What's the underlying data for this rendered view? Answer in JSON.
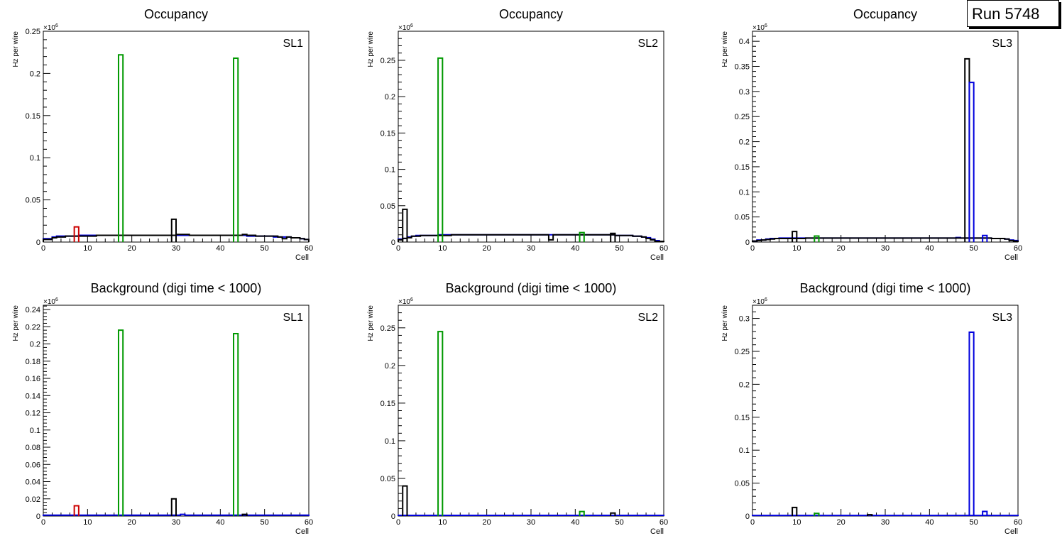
{
  "run_label": "Run 5748",
  "colors": {
    "black": "#000000",
    "red": "#cc0000",
    "green": "#009900",
    "blue": "#0000dd"
  },
  "chart_data": [
    {
      "type": "bar",
      "title": "Occupancy",
      "tag": "SL1",
      "xlabel": "Cell",
      "ylabel": "Hz per wire",
      "exponent_label": "×10",
      "exponent": "6",
      "xlim": [
        0,
        60
      ],
      "ylim": [
        0,
        0.25
      ],
      "xticks": [
        "0",
        "10",
        "20",
        "30",
        "40",
        "50",
        "60"
      ],
      "yticks": [
        "0",
        "0.05",
        "0.1",
        "0.15",
        "0.2",
        "0.25"
      ],
      "ytick_values": [
        0,
        0.05,
        0.1,
        0.15,
        0.2,
        0.25
      ],
      "baselines": [
        {
          "color": "#0000dd",
          "values": [
            0.004,
            0.004,
            0.006,
            0.007,
            0.007,
            0.007,
            0.007,
            0.007,
            0.008,
            0.008,
            0.008,
            0.008,
            0.008,
            0.008,
            0.008,
            0.008,
            0.008,
            0.008,
            0.008,
            0.008,
            0.008,
            0.008,
            0.008,
            0.008,
            0.008,
            0.008,
            0.008,
            0.008,
            0.008,
            0.008,
            0.008,
            0.008,
            0.008,
            0.008,
            0.008,
            0.008,
            0.008,
            0.008,
            0.008,
            0.008,
            0.008,
            0.008,
            0.008,
            0.008,
            0.008,
            0.008,
            0.007,
            0.007,
            0.007,
            0.007,
            0.007,
            0.007,
            0.006,
            0.006,
            0.006,
            0.006,
            0.005,
            0.005,
            0.004,
            0.003
          ]
        },
        {
          "color": "#000000",
          "values": [
            0.003,
            0.003,
            0.005,
            0.006,
            0.006,
            0.007,
            0.007,
            0.007,
            0.007,
            0.007,
            0.007,
            0.007,
            0.008,
            0.008,
            0.008,
            0.008,
            0.008,
            0.008,
            0.008,
            0.008,
            0.008,
            0.008,
            0.008,
            0.008,
            0.008,
            0.008,
            0.008,
            0.008,
            0.008,
            0.008,
            0.009,
            0.009,
            0.009,
            0.008,
            0.008,
            0.008,
            0.008,
            0.008,
            0.008,
            0.008,
            0.008,
            0.008,
            0.008,
            0.008,
            0.008,
            0.009,
            0.008,
            0.008,
            0.007,
            0.007,
            0.007,
            0.007,
            0.007,
            0.006,
            0.004,
            0.006,
            0.005,
            0.005,
            0.004,
            0.003
          ]
        }
      ],
      "spikes": [
        {
          "color": "#cc0000",
          "bin": 7,
          "value": 0.018
        },
        {
          "color": "#009900",
          "bin": 17,
          "value": 0.222
        },
        {
          "color": "#000000",
          "bin": 29,
          "value": 0.027
        },
        {
          "color": "#009900",
          "bin": 43,
          "value": 0.218
        }
      ]
    },
    {
      "type": "bar",
      "title": "Occupancy",
      "tag": "SL2",
      "xlabel": "Cell",
      "ylabel": "Hz per wire",
      "exponent_label": "×10",
      "exponent": "6",
      "xlim": [
        0,
        60
      ],
      "ylim": [
        0,
        0.29
      ],
      "xticks": [
        "0",
        "10",
        "20",
        "30",
        "40",
        "50",
        "60"
      ],
      "yticks": [
        "0",
        "0.05",
        "0.1",
        "0.15",
        "0.2",
        "0.25"
      ],
      "ytick_values": [
        0,
        0.05,
        0.1,
        0.15,
        0.2,
        0.25
      ],
      "baselines": [
        {
          "color": "#0000dd",
          "values": [
            0.004,
            0.005,
            0.007,
            0.008,
            0.009,
            0.009,
            0.009,
            0.009,
            0.009,
            0.01,
            0.01,
            0.01,
            0.01,
            0.01,
            0.01,
            0.01,
            0.01,
            0.01,
            0.01,
            0.01,
            0.01,
            0.01,
            0.01,
            0.01,
            0.01,
            0.01,
            0.01,
            0.01,
            0.01,
            0.01,
            0.01,
            0.01,
            0.01,
            0.01,
            0.01,
            0.01,
            0.01,
            0.01,
            0.01,
            0.01,
            0.01,
            0.01,
            0.01,
            0.01,
            0.01,
            0.01,
            0.01,
            0.01,
            0.01,
            0.009,
            0.009,
            0.009,
            0.009,
            0.008,
            0.008,
            0.007,
            0.006,
            0.004,
            0.002,
            0.001
          ]
        },
        {
          "color": "#000000",
          "values": [
            0.003,
            0.005,
            0.006,
            0.008,
            0.008,
            0.009,
            0.009,
            0.009,
            0.009,
            0.009,
            0.009,
            0.009,
            0.01,
            0.01,
            0.01,
            0.01,
            0.01,
            0.01,
            0.01,
            0.01,
            0.01,
            0.01,
            0.01,
            0.01,
            0.01,
            0.01,
            0.01,
            0.01,
            0.01,
            0.01,
            0.01,
            0.01,
            0.01,
            0.01,
            0.003,
            0.01,
            0.01,
            0.01,
            0.01,
            0.01,
            0.01,
            0.01,
            0.01,
            0.01,
            0.01,
            0.01,
            0.01,
            0.01,
            0.01,
            0.009,
            0.009,
            0.009,
            0.009,
            0.008,
            0.008,
            0.007,
            0.005,
            0.003,
            0.001,
            0.001
          ]
        }
      ],
      "spikes": [
        {
          "color": "#000000",
          "bin": 1,
          "value": 0.045
        },
        {
          "color": "#009900",
          "bin": 9,
          "value": 0.253
        },
        {
          "color": "#009900",
          "bin": 41,
          "value": 0.013
        },
        {
          "color": "#000000",
          "bin": 48,
          "value": 0.012
        }
      ]
    },
    {
      "type": "bar",
      "title": "Occupancy",
      "tag": "SL3",
      "xlabel": "Cell",
      "ylabel": "Hz per wire",
      "exponent_label": "×10",
      "exponent": "6",
      "xlim": [
        0,
        60
      ],
      "ylim": [
        0,
        0.42
      ],
      "xticks": [
        "0",
        "10",
        "20",
        "30",
        "40",
        "50",
        "60"
      ],
      "yticks": [
        "0",
        "0.05",
        "0.1",
        "0.15",
        "0.2",
        "0.25",
        "0.3",
        "0.35",
        "0.4"
      ],
      "ytick_values": [
        0,
        0.05,
        0.1,
        0.15,
        0.2,
        0.25,
        0.3,
        0.35,
        0.4
      ],
      "baselines": [
        {
          "color": "#0000dd",
          "values": [
            0.002,
            0.004,
            0.004,
            0.006,
            0.007,
            0.007,
            0.008,
            0.008,
            0.008,
            0.008,
            0.008,
            0.008,
            0.008,
            0.008,
            0.008,
            0.008,
            0.008,
            0.008,
            0.008,
            0.008,
            0.008,
            0.008,
            0.008,
            0.008,
            0.008,
            0.008,
            0.008,
            0.008,
            0.008,
            0.008,
            0.008,
            0.008,
            0.008,
            0.008,
            0.008,
            0.008,
            0.008,
            0.008,
            0.008,
            0.008,
            0.008,
            0.008,
            0.008,
            0.008,
            0.008,
            0.008,
            0.009,
            0.008,
            0.008,
            0.008,
            0.008,
            0.008,
            0.008,
            0.008,
            0.007,
            0.007,
            0.007,
            0.006,
            0.004,
            0.003
          ]
        },
        {
          "color": "#000000",
          "values": [
            0.002,
            0.003,
            0.004,
            0.005,
            0.006,
            0.007,
            0.007,
            0.007,
            0.007,
            0.007,
            0.007,
            0.007,
            0.008,
            0.008,
            0.008,
            0.008,
            0.008,
            0.008,
            0.008,
            0.008,
            0.008,
            0.008,
            0.008,
            0.008,
            0.008,
            0.008,
            0.008,
            0.008,
            0.008,
            0.008,
            0.008,
            0.008,
            0.008,
            0.008,
            0.008,
            0.008,
            0.008,
            0.008,
            0.008,
            0.008,
            0.008,
            0.008,
            0.008,
            0.008,
            0.008,
            0.008,
            0.008,
            0.008,
            0.008,
            0.008,
            0.008,
            0.008,
            0.008,
            0.008,
            0.007,
            0.007,
            0.007,
            0.006,
            0.003,
            0.002
          ]
        }
      ],
      "spikes": [
        {
          "color": "#000000",
          "bin": 9,
          "value": 0.021
        },
        {
          "color": "#009900",
          "bin": 14,
          "value": 0.012
        },
        {
          "color": "#000000",
          "bin": 48,
          "value": 0.365
        },
        {
          "color": "#0000dd",
          "bin": 49,
          "value": 0.318
        },
        {
          "color": "#0000dd",
          "bin": 52,
          "value": 0.013
        }
      ]
    },
    {
      "type": "bar",
      "title": "Background (digi time < 1000)",
      "tag": "SL1",
      "xlabel": "Cell",
      "ylabel": "Hz per wire",
      "exponent_label": "×10",
      "exponent": "6",
      "xlim": [
        0,
        60
      ],
      "ylim": [
        0,
        0.245
      ],
      "xticks": [
        "0",
        "10",
        "20",
        "30",
        "40",
        "50",
        "60"
      ],
      "yticks": [
        "0",
        "0.02",
        "0.04",
        "0.06",
        "0.08",
        "0.1",
        "0.12",
        "0.14",
        "0.16",
        "0.18",
        "0.2",
        "0.22",
        "0.24"
      ],
      "ytick_values": [
        0,
        0.02,
        0.04,
        0.06,
        0.08,
        0.1,
        0.12,
        0.14,
        0.16,
        0.18,
        0.2,
        0.22,
        0.24
      ],
      "baselines": [
        {
          "color": "#0000dd",
          "values": [
            0.001,
            0.001,
            0.001,
            0.001,
            0.001,
            0.001,
            0.001,
            0.001,
            0.001,
            0.001,
            0.001,
            0.001,
            0.001,
            0.001,
            0.001,
            0.001,
            0.001,
            0.001,
            0.001,
            0.001,
            0.001,
            0.001,
            0.001,
            0.001,
            0.001,
            0.001,
            0.001,
            0.001,
            0.001,
            0.001,
            0.001,
            0.002,
            0.001,
            0.001,
            0.001,
            0.001,
            0.001,
            0.001,
            0.001,
            0.001,
            0.001,
            0.001,
            0.001,
            0.001,
            0.001,
            0.001,
            0.001,
            0.001,
            0.001,
            0.001,
            0.001,
            0.001,
            0.001,
            0.001,
            0.001,
            0.001,
            0.001,
            0.001,
            0.001,
            0.001
          ]
        }
      ],
      "spikes": [
        {
          "color": "#cc0000",
          "bin": 7,
          "value": 0.012
        },
        {
          "color": "#009900",
          "bin": 17,
          "value": 0.216
        },
        {
          "color": "#000000",
          "bin": 29,
          "value": 0.02
        },
        {
          "color": "#009900",
          "bin": 43,
          "value": 0.212
        },
        {
          "color": "#000000",
          "bin": 45,
          "value": 0.002
        }
      ]
    },
    {
      "type": "bar",
      "title": "Background (digi time < 1000)",
      "tag": "SL2",
      "xlabel": "Cell",
      "ylabel": "Hz per wire",
      "exponent_label": "×10",
      "exponent": "6",
      "xlim": [
        0,
        60
      ],
      "ylim": [
        0,
        0.28
      ],
      "xticks": [
        "0",
        "10",
        "20",
        "30",
        "40",
        "50",
        "60"
      ],
      "yticks": [
        "0",
        "0.05",
        "0.1",
        "0.15",
        "0.2",
        "0.25"
      ],
      "ytick_values": [
        0,
        0.05,
        0.1,
        0.15,
        0.2,
        0.25
      ],
      "baselines": [
        {
          "color": "#0000dd",
          "values": [
            0.001,
            0.001,
            0.001,
            0.001,
            0.001,
            0.001,
            0.001,
            0.001,
            0.001,
            0.001,
            0.001,
            0.001,
            0.001,
            0.001,
            0.001,
            0.001,
            0.001,
            0.001,
            0.001,
            0.001,
            0.001,
            0.001,
            0.001,
            0.001,
            0.001,
            0.001,
            0.001,
            0.001,
            0.001,
            0.001,
            0.001,
            0.001,
            0.001,
            0.001,
            0.001,
            0.001,
            0.001,
            0.001,
            0.001,
            0.001,
            0.001,
            0.001,
            0.001,
            0.001,
            0.001,
            0.001,
            0.001,
            0.001,
            0.001,
            0.001,
            0.001,
            0.001,
            0.001,
            0.001,
            0.001,
            0.001,
            0.001,
            0.001,
            0.001,
            0.001
          ]
        }
      ],
      "spikes": [
        {
          "color": "#000000",
          "bin": 1,
          "value": 0.04
        },
        {
          "color": "#009900",
          "bin": 9,
          "value": 0.245
        },
        {
          "color": "#009900",
          "bin": 41,
          "value": 0.006
        },
        {
          "color": "#000000",
          "bin": 48,
          "value": 0.004
        }
      ]
    },
    {
      "type": "bar",
      "title": "Background (digi time < 1000)",
      "tag": "SL3",
      "xlabel": "Cell",
      "ylabel": "Hz per wire",
      "exponent_label": "×10",
      "exponent": "6",
      "xlim": [
        0,
        60
      ],
      "ylim": [
        0,
        0.32
      ],
      "xticks": [
        "0",
        "10",
        "20",
        "30",
        "40",
        "50",
        "60"
      ],
      "yticks": [
        "0",
        "0.05",
        "0.1",
        "0.15",
        "0.2",
        "0.25",
        "0.3"
      ],
      "ytick_values": [
        0,
        0.05,
        0.1,
        0.15,
        0.2,
        0.25,
        0.3
      ],
      "baselines": [
        {
          "color": "#0000dd",
          "values": [
            0.001,
            0.001,
            0.001,
            0.001,
            0.001,
            0.001,
            0.001,
            0.001,
            0.001,
            0.001,
            0.001,
            0.001,
            0.001,
            0.001,
            0.001,
            0.001,
            0.001,
            0.001,
            0.001,
            0.001,
            0.001,
            0.001,
            0.001,
            0.001,
            0.001,
            0.001,
            0.001,
            0.001,
            0.001,
            0.001,
            0.001,
            0.001,
            0.001,
            0.001,
            0.001,
            0.001,
            0.001,
            0.001,
            0.001,
            0.001,
            0.001,
            0.001,
            0.001,
            0.001,
            0.001,
            0.001,
            0.001,
            0.001,
            0.001,
            0.001,
            0.001,
            0.001,
            0.001,
            0.001,
            0.001,
            0.001,
            0.001,
            0.001,
            0.001,
            0.001
          ]
        }
      ],
      "spikes": [
        {
          "color": "#000000",
          "bin": 9,
          "value": 0.013
        },
        {
          "color": "#009900",
          "bin": 14,
          "value": 0.004
        },
        {
          "color": "#000000",
          "bin": 26,
          "value": 0.002
        },
        {
          "color": "#0000dd",
          "bin": 49,
          "value": 0.279
        },
        {
          "color": "#0000dd",
          "bin": 52,
          "value": 0.007
        }
      ]
    }
  ]
}
